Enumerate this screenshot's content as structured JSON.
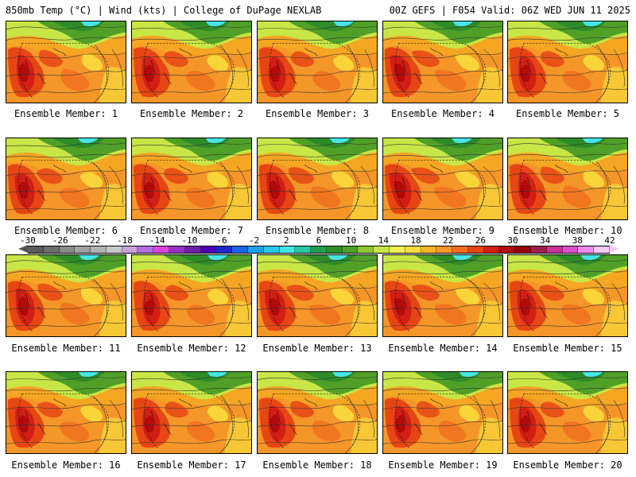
{
  "header": {
    "left": "850mb Temp (°C) | Wind (kts) | College of DuPage NEXLAB",
    "right": "00Z GEFS | F054 Valid: 06Z WED JUN 11 2025"
  },
  "members": [
    {
      "label": "Ensemble Member: 1"
    },
    {
      "label": "Ensemble Member: 2"
    },
    {
      "label": "Ensemble Member: 3"
    },
    {
      "label": "Ensemble Member: 4"
    },
    {
      "label": "Ensemble Member: 5"
    },
    {
      "label": "Ensemble Member: 6"
    },
    {
      "label": "Ensemble Member: 7"
    },
    {
      "label": "Ensemble Member: 8"
    },
    {
      "label": "Ensemble Member: 9"
    },
    {
      "label": "Ensemble Member: 10"
    },
    {
      "label": "Ensemble Member: 11"
    },
    {
      "label": "Ensemble Member: 12"
    },
    {
      "label": "Ensemble Member: 13"
    },
    {
      "label": "Ensemble Member: 14"
    },
    {
      "label": "Ensemble Member: 15"
    },
    {
      "label": "Ensemble Member: 16"
    },
    {
      "label": "Ensemble Member: 17"
    },
    {
      "label": "Ensemble Member: 18"
    },
    {
      "label": "Ensemble Member: 19"
    },
    {
      "label": "Ensemble Member: 20"
    }
  ],
  "colorbar": {
    "ticks": [
      "-30",
      "-26",
      "-22",
      "-18",
      "-14",
      "-10",
      "-6",
      "-2",
      "2",
      "6",
      "10",
      "14",
      "18",
      "22",
      "26",
      "30",
      "34",
      "38",
      "42"
    ],
    "colors": [
      "#5a5a5a",
      "#6e6e6e",
      "#8a8a8a",
      "#a0a0a0",
      "#b4b4b4",
      "#c8c8c8",
      "#c8a0dc",
      "#b46ee6",
      "#dc46dc",
      "#9632c8",
      "#6e1eaa",
      "#5000b4",
      "#1e28c8",
      "#1e64e6",
      "#1ea0f0",
      "#28c8f0",
      "#46e6e6",
      "#28c8a0",
      "#1ea050",
      "#2d8c28",
      "#50a028",
      "#8cc832",
      "#c8e646",
      "#f0f050",
      "#fadc3c",
      "#f5b428",
      "#f59628",
      "#f06e1e",
      "#e64614",
      "#d21e14",
      "#b40a0a",
      "#960000",
      "#a01e50",
      "#c83296",
      "#dc50c8",
      "#f08cf0",
      "#f5c8f5"
    ]
  }
}
